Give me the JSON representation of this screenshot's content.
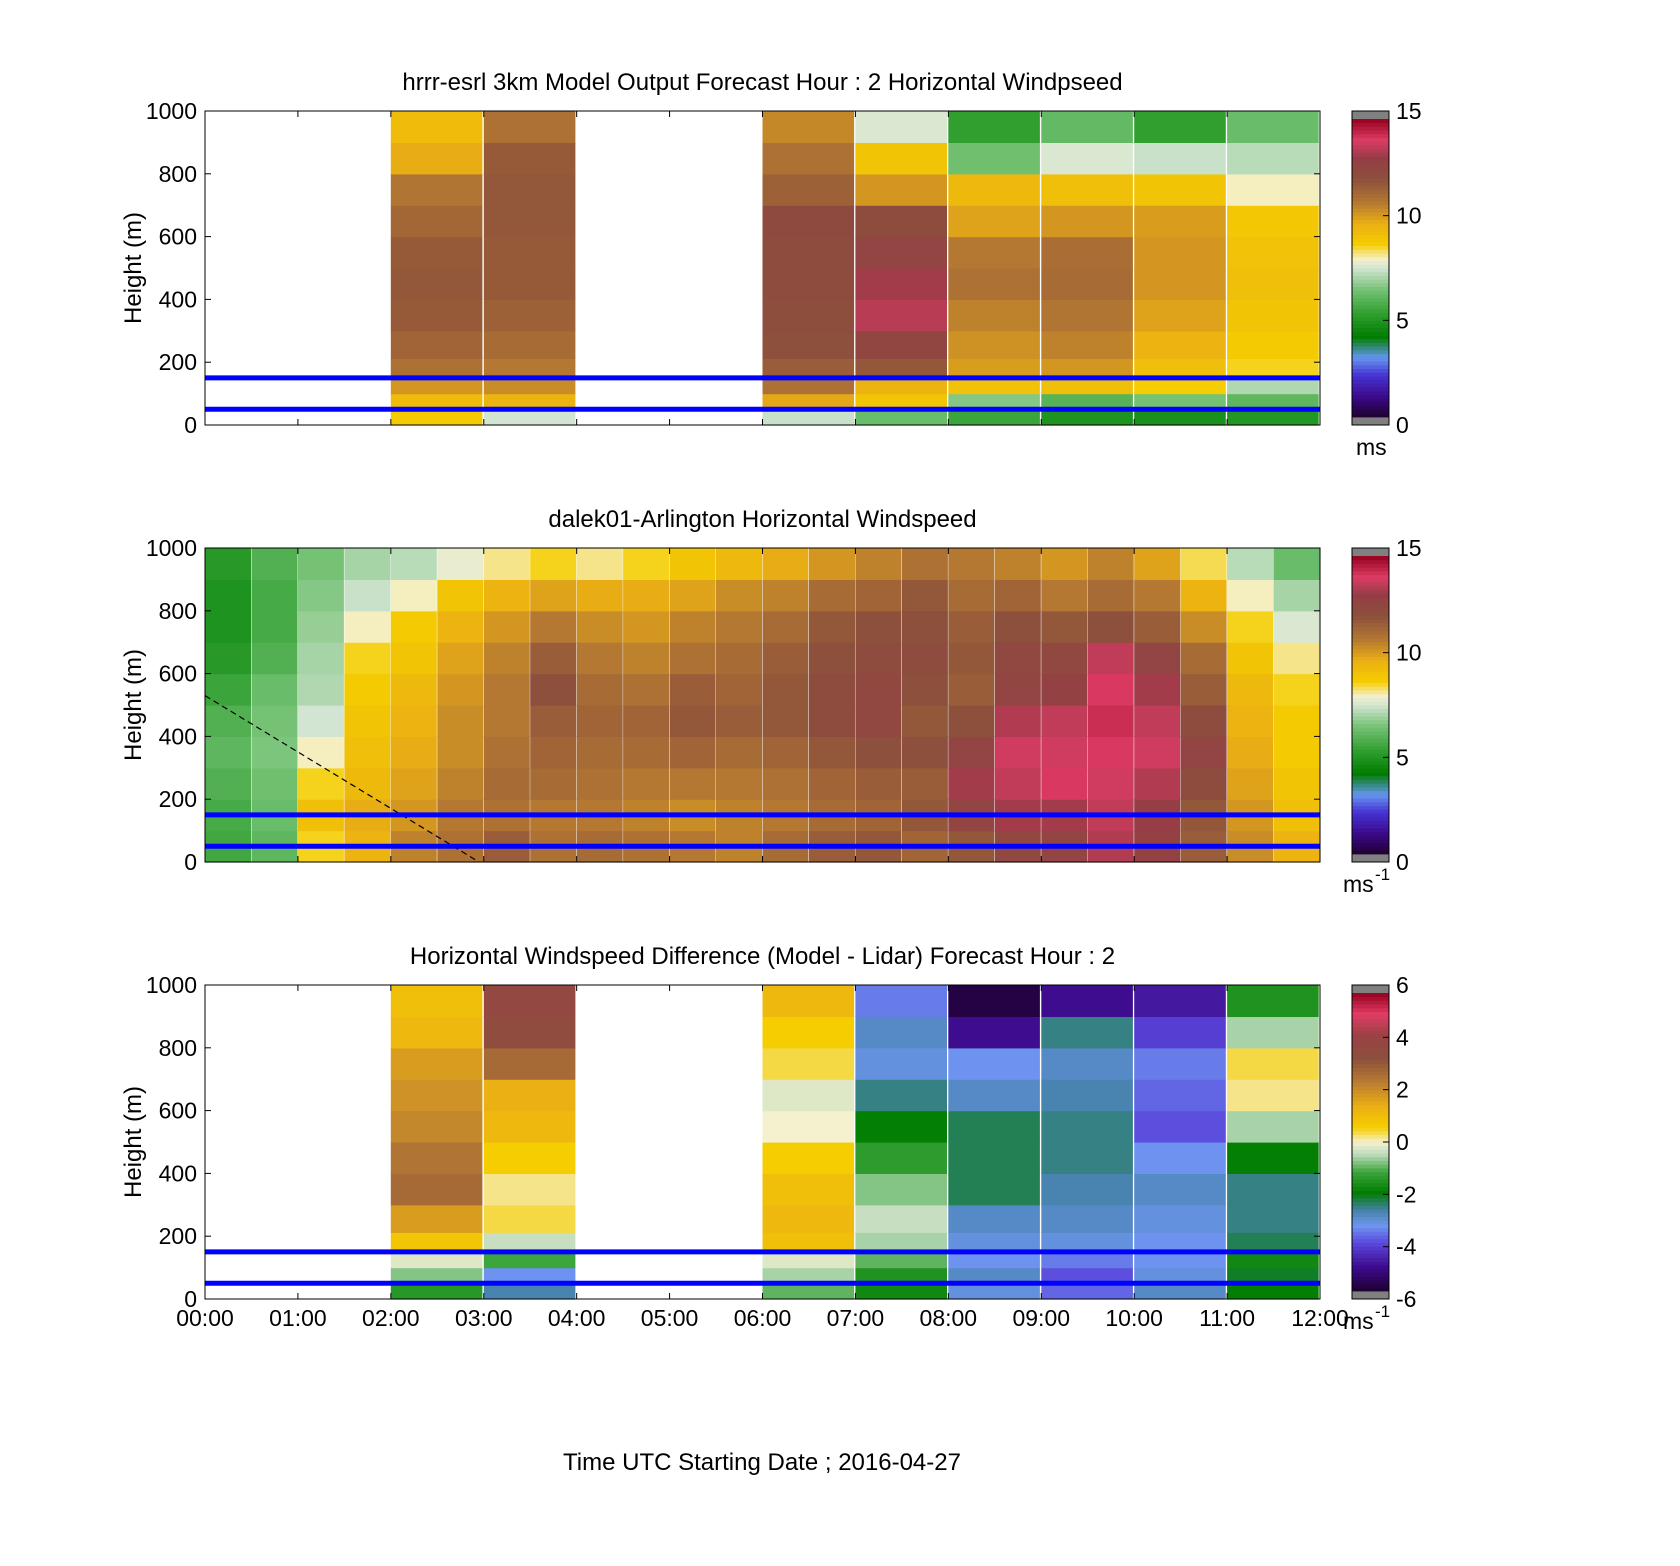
{
  "figure": {
    "xlabel": "Time UTC  Starting Date ; 2016-04-27"
  },
  "chart_data": [
    {
      "type": "heatmap",
      "title": "hrrr-esrl 3km Model Output   Forecast Hour : 2 Horizontal Windpseed",
      "ylabel": "Height (m)",
      "xlabel": "Time UTC  Starting Date ; 2016-04-27",
      "xlim": [
        0,
        12
      ],
      "ylim": [
        0,
        1000
      ],
      "x_ticks": [
        "00:00",
        "01:00",
        "02:00",
        "03:00",
        "04:00",
        "05:00",
        "06:00",
        "07:00",
        "08:00",
        "09:00",
        "10:00",
        "11:00",
        "12:00"
      ],
      "y_ticks": [
        0,
        200,
        400,
        600,
        800,
        1000
      ],
      "colorbar": {
        "min": 0,
        "max": 15,
        "ticks": [
          0,
          5,
          10,
          15
        ],
        "unit": "ms"
      },
      "reference_heights_m": [
        50,
        150
      ],
      "columns_hours": [
        2,
        3,
        6,
        7,
        8,
        9,
        10,
        11
      ],
      "levels_m": [
        25,
        75,
        125,
        175,
        250,
        350,
        450,
        550,
        650,
        750,
        850,
        950
      ],
      "values": [
        [
          8.8,
          9.3,
          10.2,
          11.0,
          11.4,
          11.7,
          11.8,
          11.7,
          11.3,
          10.9,
          9.8,
          9.3
        ],
        [
          7.5,
          9.6,
          10.4,
          10.8,
          11.2,
          11.5,
          11.7,
          11.7,
          11.8,
          11.8,
          11.7,
          11.0
        ],
        [
          7.4,
          9.9,
          11.0,
          11.6,
          12.0,
          12.1,
          12.2,
          12.2,
          12.3,
          11.5,
          11.0,
          10.5
        ],
        [
          6.2,
          9.0,
          9.6,
          11.8,
          12.5,
          13.5,
          13.2,
          12.6,
          12.2,
          10.2,
          9.0,
          7.6
        ],
        [
          5.4,
          6.6,
          9.1,
          10.1,
          10.3,
          10.6,
          11.0,
          10.8,
          10.0,
          9.4,
          6.3,
          5.2
        ],
        [
          4.8,
          5.9,
          9.2,
          10.2,
          10.6,
          10.9,
          11.2,
          11.1,
          10.2,
          9.2,
          7.6,
          6.1
        ],
        [
          4.7,
          6.4,
          8.7,
          9.2,
          9.6,
          10.0,
          10.2,
          10.2,
          10.1,
          9.0,
          7.4,
          5.2
        ],
        [
          4.9,
          6.0,
          7.1,
          8.6,
          8.8,
          9.0,
          9.2,
          9.1,
          8.9,
          8.0,
          7.2,
          6.2
        ]
      ]
    },
    {
      "type": "heatmap",
      "title": "dalek01-Arlington  Horizontal Windspeed",
      "ylabel": "Height (m)",
      "xlabel": "Time UTC  Starting Date ; 2016-04-27",
      "xlim": [
        0,
        12
      ],
      "ylim": [
        0,
        1000
      ],
      "x_ticks": [
        "00:00",
        "01:00",
        "02:00",
        "03:00",
        "04:00",
        "05:00",
        "06:00",
        "07:00",
        "08:00",
        "09:00",
        "10:00",
        "11:00",
        "12:00"
      ],
      "y_ticks": [
        0,
        200,
        400,
        600,
        800,
        1000
      ],
      "colorbar": {
        "min": 0,
        "max": 15,
        "ticks": [
          0,
          5,
          10,
          15
        ],
        "unit": "ms",
        "unit_exponent": "-1"
      },
      "reference_heights_m": [
        50,
        150
      ],
      "annotations": [
        {
          "type": "dashed-line",
          "from": [
            0,
            530
          ],
          "to": [
            2.95,
            0
          ]
        }
      ],
      "columns_hours": [
        0,
        0.5,
        1,
        1.5,
        2,
        2.5,
        3,
        3.5,
        4,
        4.5,
        5,
        5.5,
        6,
        6.5,
        7,
        7.5,
        8,
        8.5,
        9,
        9.5,
        10,
        10.5,
        11,
        11.5
      ],
      "levels_m": [
        50,
        150,
        250,
        350,
        450,
        550,
        650,
        750,
        850,
        950
      ],
      "values": [
        [
          5.5,
          5.6,
          5.8,
          6.0,
          5.8,
          5.4,
          5.0,
          4.8,
          4.8,
          5.0
        ],
        [
          6.0,
          6.2,
          6.3,
          6.5,
          6.4,
          6.2,
          5.8,
          5.6,
          5.6,
          5.8
        ],
        [
          8.6,
          9.2,
          8.6,
          8.0,
          7.5,
          7.1,
          7.0,
          6.8,
          6.6,
          6.4
        ],
        [
          9.6,
          9.8,
          9.4,
          9.2,
          9.0,
          8.8,
          8.6,
          8.0,
          7.4,
          7.0
        ],
        [
          10.6,
          10.2,
          10.0,
          9.8,
          9.6,
          9.4,
          9.0,
          8.8,
          8.0,
          7.2
        ],
        [
          11.0,
          10.8,
          10.6,
          10.4,
          10.4,
          10.2,
          10.0,
          9.6,
          9.0,
          7.8
        ],
        [
          11.6,
          11.0,
          11.2,
          11.0,
          10.8,
          10.8,
          10.6,
          10.2,
          9.6,
          8.2
        ],
        [
          11.0,
          10.8,
          11.2,
          11.4,
          11.6,
          12.0,
          11.6,
          10.8,
          10.0,
          8.6
        ],
        [
          11.2,
          10.8,
          11.0,
          11.2,
          11.4,
          11.2,
          10.8,
          10.4,
          9.8,
          8.2
        ],
        [
          11.0,
          10.6,
          10.8,
          11.2,
          11.4,
          11.0,
          10.6,
          10.2,
          9.8,
          8.6
        ],
        [
          10.8,
          10.4,
          10.8,
          11.4,
          11.8,
          11.6,
          11.0,
          10.6,
          10.0,
          9.0
        ],
        [
          10.6,
          10.6,
          10.8,
          11.2,
          11.6,
          11.4,
          11.2,
          10.8,
          10.4,
          9.4
        ],
        [
          11.2,
          10.8,
          11.0,
          11.4,
          11.8,
          11.8,
          11.6,
          11.2,
          10.6,
          9.8
        ],
        [
          11.6,
          11.2,
          11.4,
          11.8,
          12.2,
          12.2,
          12.0,
          11.8,
          11.2,
          10.2
        ],
        [
          11.8,
          11.4,
          11.6,
          12.0,
          12.4,
          12.4,
          12.2,
          12.0,
          11.4,
          10.6
        ],
        [
          11.4,
          11.8,
          11.6,
          12.0,
          11.8,
          12.0,
          12.2,
          12.0,
          11.8,
          11.0
        ],
        [
          11.8,
          12.6,
          13.2,
          12.6,
          12.0,
          11.6,
          11.8,
          11.6,
          11.2,
          10.8
        ],
        [
          12.4,
          13.2,
          13.6,
          13.8,
          13.4,
          12.6,
          12.4,
          12.0,
          11.4,
          10.6
        ],
        [
          12.6,
          13.2,
          14.0,
          13.8,
          13.6,
          12.8,
          12.4,
          11.8,
          10.8,
          10.2
        ],
        [
          13.4,
          13.6,
          13.8,
          14.0,
          14.2,
          14.0,
          13.6,
          12.0,
          11.2,
          10.6
        ],
        [
          12.8,
          13.0,
          13.4,
          13.8,
          13.6,
          13.2,
          12.6,
          11.6,
          10.8,
          10.0
        ],
        [
          11.6,
          11.8,
          12.2,
          12.6,
          12.2,
          11.6,
          11.2,
          10.4,
          9.6,
          8.4
        ],
        [
          10.4,
          10.2,
          10.0,
          9.8,
          9.6,
          9.4,
          9.0,
          8.6,
          8.0,
          7.2
        ],
        [
          9.6,
          9.2,
          9.0,
          8.8,
          8.8,
          8.6,
          8.2,
          7.6,
          7.0,
          6.2
        ]
      ]
    },
    {
      "type": "heatmap",
      "title": "Horizontal Windspeed Difference (Model - Lidar) Forecast Hour : 2",
      "ylabel": "Height (m)",
      "xlabel": "Time UTC  Starting Date ; 2016-04-27",
      "xlim": [
        0,
        12
      ],
      "ylim": [
        0,
        1000
      ],
      "x_ticks": [
        "00:00",
        "01:00",
        "02:00",
        "03:00",
        "04:00",
        "05:00",
        "06:00",
        "07:00",
        "08:00",
        "09:00",
        "10:00",
        "11:00",
        "12:00"
      ],
      "y_ticks": [
        0,
        200,
        400,
        600,
        800,
        1000
      ],
      "colorbar": {
        "min": -6,
        "max": 6,
        "ticks": [
          -6,
          -4,
          -2,
          0,
          2,
          4,
          6
        ],
        "unit": "ms",
        "unit_exponent": "-1"
      },
      "reference_heights_m": [
        50,
        150
      ],
      "columns_hours": [
        2,
        3,
        6,
        7,
        8,
        9,
        10,
        11
      ],
      "levels_m": [
        25,
        75,
        125,
        175,
        250,
        350,
        450,
        550,
        650,
        750,
        850,
        950
      ],
      "values": [
        [
          -1.5,
          -0.8,
          -0.2,
          0.8,
          1.8,
          2.8,
          2.6,
          2.2,
          2.0,
          1.8,
          1.2,
          1.0
        ],
        [
          -2.8,
          -3.4,
          -1.2,
          -0.4,
          0.4,
          0.2,
          0.6,
          1.2,
          1.4,
          2.8,
          3.6,
          3.8
        ],
        [
          -1.0,
          -0.6,
          -0.2,
          1.0,
          1.2,
          1.0,
          0.6,
          0.0,
          -0.2,
          0.4,
          0.6,
          1.2
        ],
        [
          -1.8,
          -1.6,
          -1.0,
          -0.6,
          -0.4,
          -0.8,
          -1.4,
          -2.0,
          -2.6,
          -3.2,
          -3.0,
          -3.6
        ],
        [
          -3.2,
          -3.0,
          -3.4,
          -3.2,
          -3.0,
          -2.4,
          -2.4,
          -2.4,
          -3.0,
          -3.4,
          -5.0,
          -5.8
        ],
        [
          -3.8,
          -4.0,
          -3.6,
          -3.2,
          -3.0,
          -2.8,
          -2.6,
          -2.6,
          -2.8,
          -3.0,
          -2.6,
          -5.0
        ],
        [
          -3.0,
          -3.2,
          -3.4,
          -3.4,
          -3.2,
          -3.0,
          -3.4,
          -4.0,
          -3.8,
          -3.6,
          -4.2,
          -4.8
        ],
        [
          -2.0,
          -2.2,
          -1.8,
          -2.4,
          -2.6,
          -2.6,
          -2.0,
          -0.6,
          0.2,
          0.4,
          -0.6,
          -1.6
        ]
      ]
    }
  ]
}
